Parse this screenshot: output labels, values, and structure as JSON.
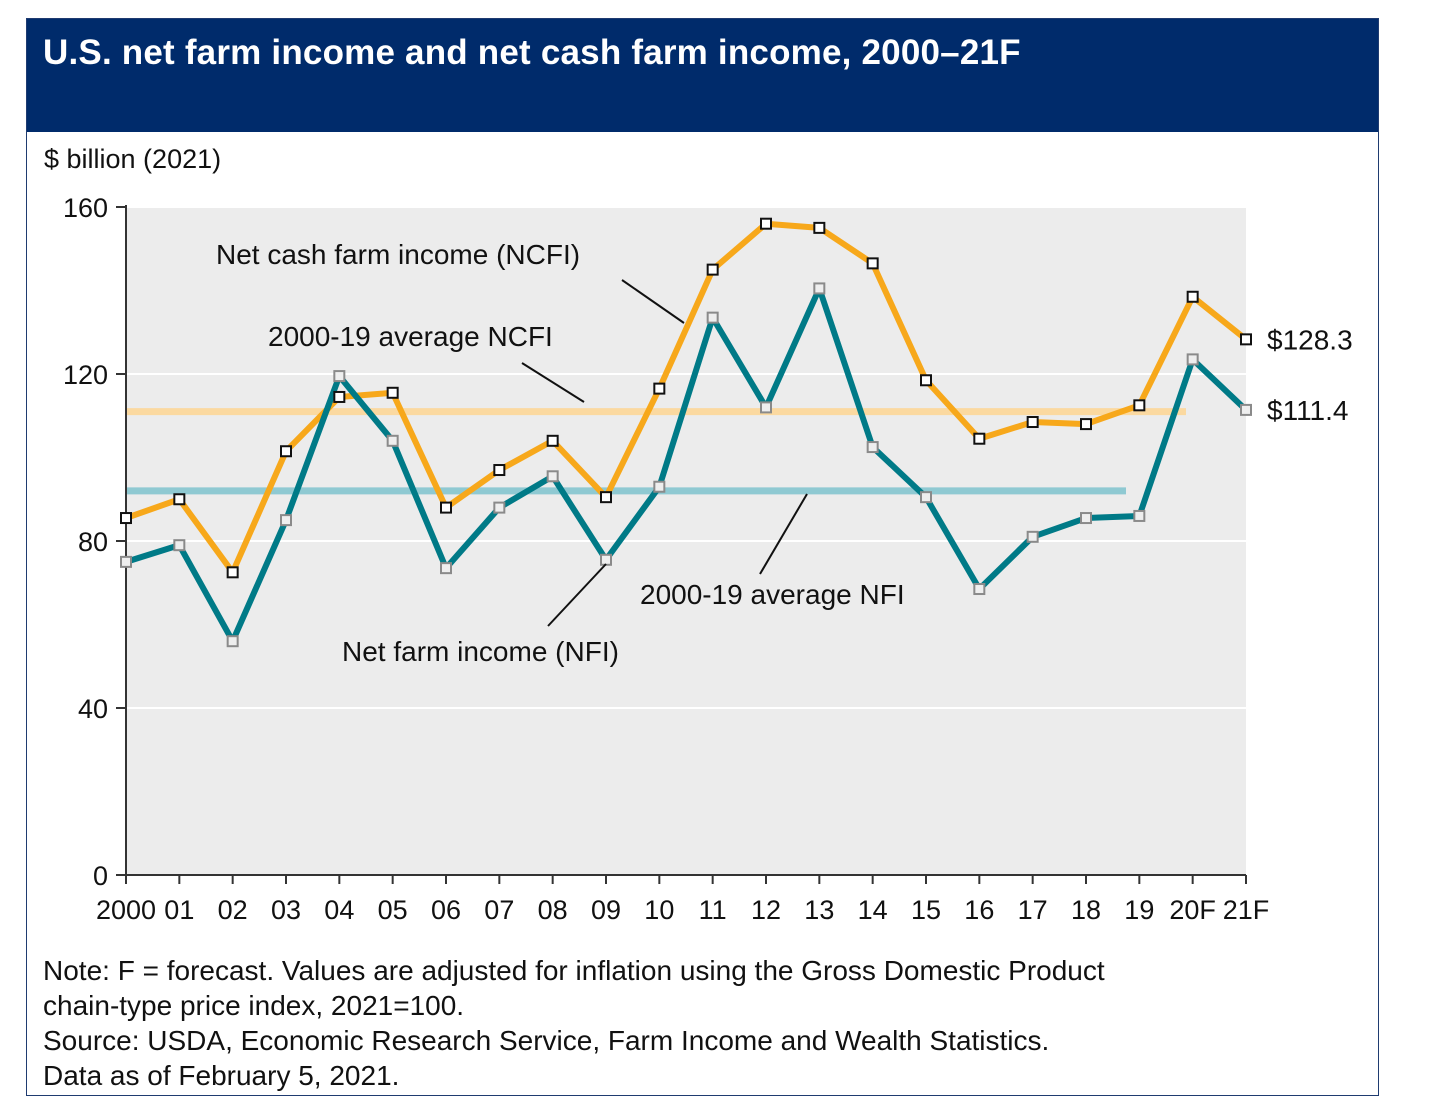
{
  "title": "U.S. net farm income and net cash farm income, 2000–21F",
  "notes": [
    "Note: F = forecast. Values are adjusted for inflation using the Gross Domestic Product",
    "chain-type price index, 2021=100.",
    "Source: USDA, Economic Research Service, Farm Income and Wealth Statistics.",
    "Data as of February 5, 2021."
  ],
  "colors": {
    "header_bg": "#002b6b",
    "ncfi": "#f7a81b",
    "nfi": "#007a87",
    "ncfi_avg": "#fbd9a0",
    "nfi_avg": "#8fc9d2",
    "plot_bg": "#ececec"
  },
  "chart_data": {
    "type": "line",
    "ylabel": "$ billion (2021)",
    "ylim": [
      0,
      160
    ],
    "yticks": [
      0,
      40,
      80,
      120,
      160
    ],
    "grid": true,
    "categories": [
      "2000",
      "01",
      "02",
      "03",
      "04",
      "05",
      "06",
      "07",
      "08",
      "09",
      "10",
      "11",
      "12",
      "13",
      "14",
      "15",
      "16",
      "17",
      "18",
      "19",
      "20F",
      "21F"
    ],
    "series": [
      {
        "name": "Net cash farm income (NCFI)",
        "values": [
          85.5,
          90,
          72.5,
          101.5,
          114.5,
          115.5,
          88,
          97,
          104,
          90.5,
          116.5,
          145,
          156,
          155,
          146.5,
          118.5,
          104.5,
          108.5,
          108,
          112.5,
          138.5,
          128.3
        ]
      },
      {
        "name": "Net farm income (NFI)",
        "values": [
          75,
          79,
          56,
          85,
          119.5,
          104,
          73.5,
          88,
          95.5,
          75.5,
          93,
          133.5,
          112,
          140.5,
          102.5,
          90.5,
          68.5,
          81,
          85.5,
          86,
          123.5,
          111.4
        ]
      }
    ],
    "averages": [
      {
        "name": "2000-19 average NCFI",
        "value": 111
      },
      {
        "name": "2000-19 average NFI",
        "value": 92
      }
    ],
    "end_labels": [
      "$128.3",
      "$111.4"
    ]
  }
}
